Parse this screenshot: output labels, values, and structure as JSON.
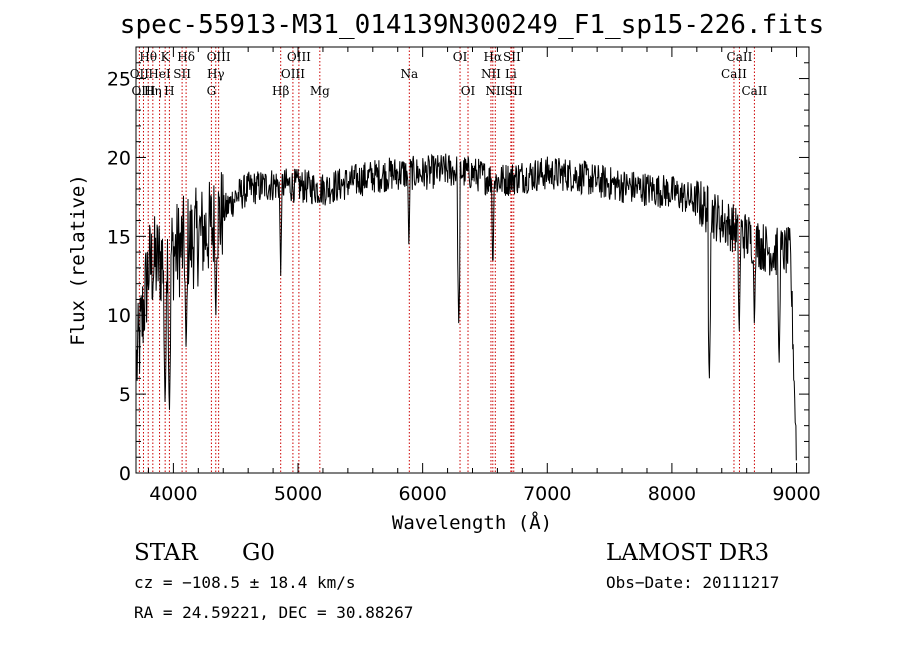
{
  "chart_data": {
    "type": "line",
    "title": "spec-55913-M31_014139N300249_F1_sp15-226.fits",
    "xlabel": "Wavelength (Å)",
    "ylabel": "Flux (relative)",
    "xlim": [
      3700,
      9100
    ],
    "ylim": [
      0,
      27
    ],
    "xticks": [
      4000,
      5000,
      6000,
      7000,
      8000,
      9000
    ],
    "yticks": [
      0,
      5,
      10,
      15,
      20,
      25
    ],
    "continuum": {
      "x": [
        3700,
        3800,
        3900,
        4000,
        4100,
        4200,
        4300,
        4400,
        4500,
        4600,
        4800,
        5000,
        5200,
        5400,
        5600,
        5800,
        6000,
        6200,
        6400,
        6600,
        6800,
        7000,
        7200,
        7400,
        7600,
        7800,
        8000,
        8200,
        8400,
        8600,
        8800,
        8950,
        9000
      ],
      "y": [
        6.5,
        13.0,
        13.5,
        14.0,
        14.5,
        15.0,
        15.5,
        16.5,
        17.5,
        18.0,
        18.3,
        18.2,
        18.0,
        18.4,
        18.8,
        19.0,
        19.0,
        19.2,
        19.0,
        18.5,
        18.8,
        19.0,
        18.9,
        18.5,
        18.2,
        18.0,
        17.8,
        17.2,
        16.0,
        15.0,
        14.0,
        14.0,
        1.0
      ]
    },
    "absorption_features": [
      {
        "x": 3934,
        "y": 4.0
      },
      {
        "x": 3968,
        "y": 3.5
      },
      {
        "x": 4102,
        "y": 7.5
      },
      {
        "x": 4340,
        "y": 9.5
      },
      {
        "x": 4861,
        "y": 12.5
      },
      {
        "x": 5890,
        "y": 14.0
      },
      {
        "x": 6290,
        "y": 9.0
      },
      {
        "x": 6563,
        "y": 12.5
      },
      {
        "x": 8300,
        "y": 5.5
      },
      {
        "x": 8540,
        "y": 8.5
      },
      {
        "x": 8662,
        "y": 9.0
      },
      {
        "x": 8860,
        "y": 6.5
      }
    ],
    "line_ids": [
      {
        "label": "Hθ",
        "wave": 3798,
        "row": 0
      },
      {
        "label": "K",
        "wave": 3934,
        "row": 0
      },
      {
        "label": "Hδ",
        "wave": 4102,
        "row": 0
      },
      {
        "label": "OIII",
        "wave": 4363,
        "row": 0
      },
      {
        "label": "OIII",
        "wave": 5007,
        "row": 0
      },
      {
        "label": "OI",
        "wave": 6300,
        "row": 0
      },
      {
        "label": "Hα",
        "wave": 6563,
        "row": 0
      },
      {
        "label": "SII",
        "wave": 6716,
        "row": 0
      },
      {
        "label": "CaII",
        "wave": 8542,
        "row": 0
      },
      {
        "label": "OII",
        "wave": 3727,
        "row": 1
      },
      {
        "label": "HeI",
        "wave": 3889,
        "row": 1
      },
      {
        "label": "SII",
        "wave": 4070,
        "row": 1
      },
      {
        "label": "Hγ",
        "wave": 4340,
        "row": 1
      },
      {
        "label": "OIII",
        "wave": 4959,
        "row": 1
      },
      {
        "label": "Na",
        "wave": 5893,
        "row": 1
      },
      {
        "label": "NII",
        "wave": 6548,
        "row": 1
      },
      {
        "label": "Li",
        "wave": 6708,
        "row": 1
      },
      {
        "label": "CaII",
        "wave": 8498,
        "row": 1
      },
      {
        "label": "OIII",
        "wave": 3760,
        "row": 2
      },
      {
        "label": "Hη",
        "wave": 3835,
        "row": 2
      },
      {
        "label": "H",
        "wave": 3968,
        "row": 2
      },
      {
        "label": "G",
        "wave": 4305,
        "row": 2
      },
      {
        "label": "Hβ",
        "wave": 4861,
        "row": 2
      },
      {
        "label": "Mg",
        "wave": 5175,
        "row": 2
      },
      {
        "label": "OI",
        "wave": 6364,
        "row": 2
      },
      {
        "label": "NII",
        "wave": 6583,
        "row": 2
      },
      {
        "label": "SII",
        "wave": 6731,
        "row": 2
      },
      {
        "label": "CaII",
        "wave": 8662,
        "row": 2
      }
    ]
  },
  "info": {
    "class": "STAR",
    "subclass": "G0",
    "survey": "LAMOST DR3",
    "cz": "cz = −108.5 ± 18.4 km/s",
    "obs_date": "Obs−Date: 20111217",
    "radec": "RA =  24.59221, DEC =  30.88267"
  },
  "colors": {
    "spectrum": "#000000",
    "line_markers": "#cc0000"
  }
}
